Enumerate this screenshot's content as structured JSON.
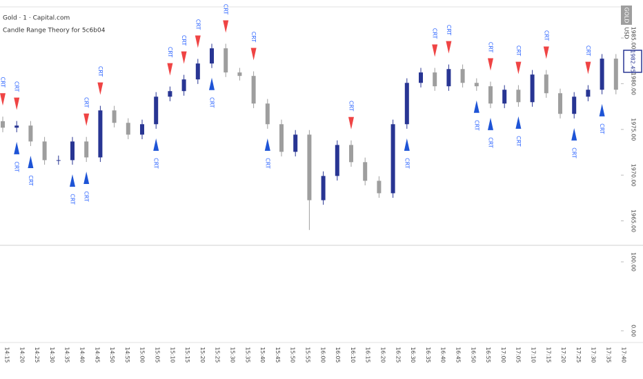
{
  "chart_data": {
    "type": "candlestick",
    "symbol": "Gold · 1 · Capital.com",
    "indicator": "Candle Range Theory for 5c6b04",
    "symbol_tag": "GOLD",
    "currency": "USD",
    "last_price": {
      "value": 1982.45,
      "label": "1982.45"
    },
    "up_color": "#283593",
    "down_color": "#9e9e9e",
    "open": [
      1975.9,
      1975.19,
      1975.42,
      1973.68,
      1971.64,
      1971.64,
      1973.68,
      1971.94,
      1977.08,
      1975.72,
      1974.43,
      1975.57,
      1978.58,
      1979.19,
      1980.47,
      1982.21,
      1983.87,
      1981.23,
      1980.85,
      1977.83,
      1975.57,
      1972.55,
      1974.43,
      1967.26,
      1969.91,
      1973.3,
      1971.42,
      1969.38,
      1968.02,
      1975.57,
      1980.09,
      1981.23,
      1979.72,
      1981.6,
      1980.09,
      1979.72,
      1977.83,
      1979.34,
      1977.98,
      1981.0,
      1978.96,
      1976.7,
      1978.58,
      1979.34,
      1982.74
    ],
    "high": [
      1976.4,
      1975.92,
      1975.92,
      1974.18,
      1972.14,
      1974.18,
      1974.18,
      1977.58,
      1977.58,
      1976.22,
      1976.07,
      1979.08,
      1979.69,
      1980.97,
      1982.71,
      1984.37,
      1984.37,
      1981.73,
      1981.35,
      1978.33,
      1976.07,
      1974.93,
      1974.93,
      1970.41,
      1973.8,
      1973.8,
      1971.92,
      1969.88,
      1976.07,
      1980.59,
      1981.73,
      1981.73,
      1982.1,
      1982.1,
      1980.59,
      1980.22,
      1979.84,
      1979.84,
      1981.5,
      1981.5,
      1979.46,
      1979.08,
      1979.84,
      1983.24,
      1983.24
    ],
    "low": [
      1974.69,
      1974.69,
      1973.18,
      1971.14,
      1971.14,
      1971.14,
      1971.44,
      1971.44,
      1975.22,
      1973.93,
      1973.93,
      1975.07,
      1978.08,
      1978.69,
      1979.97,
      1981.71,
      1980.73,
      1980.35,
      1977.33,
      1975.07,
      1972.05,
      1972.05,
      1964.0,
      1966.76,
      1969.41,
      1970.92,
      1968.88,
      1967.52,
      1967.52,
      1975.07,
      1979.59,
      1979.22,
      1979.22,
      1979.59,
      1979.22,
      1977.33,
      1977.33,
      1977.48,
      1977.48,
      1978.46,
      1976.2,
      1976.2,
      1978.08,
      1978.84,
      1978.84
    ],
    "close": [
      1975.19,
      1975.42,
      1973.68,
      1971.64,
      1971.64,
      1973.68,
      1971.94,
      1977.08,
      1975.72,
      1974.43,
      1975.57,
      1978.58,
      1979.19,
      1980.47,
      1982.21,
      1983.87,
      1981.23,
      1980.85,
      1977.83,
      1975.57,
      1972.55,
      1974.43,
      1967.26,
      1969.91,
      1973.3,
      1971.42,
      1969.38,
      1968.02,
      1975.57,
      1980.09,
      1981.23,
      1979.72,
      1981.6,
      1980.09,
      1979.72,
      1977.83,
      1979.34,
      1977.98,
      1981.0,
      1978.96,
      1976.7,
      1978.58,
      1979.34,
      1982.74,
      1979.34
    ],
    "signal_label": "CRT",
    "signals": {
      "bullish": [
        1,
        2,
        5,
        6,
        11,
        15,
        19,
        29,
        34,
        35,
        37,
        41,
        43
      ],
      "bearish": [
        0,
        1,
        6,
        7,
        12,
        13,
        14,
        16,
        18,
        25,
        31,
        32,
        35,
        37,
        39,
        42
      ],
      "bullish_color": "#1e54d6",
      "bearish_color": "#ef4444"
    },
    "ylim": [
      1962.4,
      1988.4
    ],
    "yticks": [
      {
        "value": 1985,
        "label": "1985.00"
      },
      {
        "value": 1980,
        "label": "1980.00"
      },
      {
        "value": 1975,
        "label": "1975.00"
      },
      {
        "value": 1970,
        "label": "1970.00"
      },
      {
        "value": 1965,
        "label": "1965.00"
      }
    ],
    "indicator_pane": {
      "ylim": [
        -15,
        122
      ],
      "yticks": [
        {
          "value": 100,
          "label": "100.00"
        },
        {
          "value": 0,
          "label": "0.00"
        }
      ]
    },
    "time_labels": [
      "14:15",
      "14:20",
      "14:25",
      "14:30",
      "14:35",
      "14:40",
      "14:45",
      "14:50",
      "14:55",
      "15:00",
      "15:05",
      "15:10",
      "15:15",
      "15:20",
      "15:25",
      "15:30",
      "15:35",
      "15:40",
      "15:45",
      "15:50",
      "15:55",
      "16:00",
      "16:05",
      "16:10",
      "16:15",
      "16:20",
      "16:25",
      "16:30",
      "16:35",
      "16:40",
      "16:45",
      "16:50",
      "16:55",
      "17:00",
      "17:05",
      "17:10",
      "17:15",
      "17:20",
      "17:25",
      "17:30",
      "17:35",
      "17:40"
    ]
  }
}
